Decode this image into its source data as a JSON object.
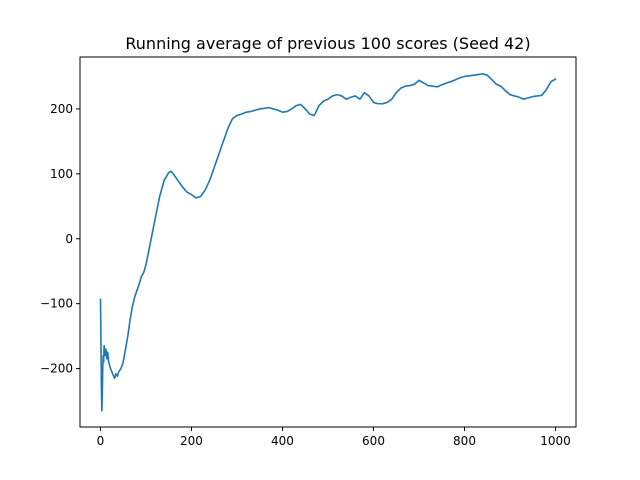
{
  "chart_data": {
    "type": "line",
    "title": "Running average of previous 100 scores (Seed 42)",
    "xlabel": "",
    "ylabel": "",
    "xlim": [
      -45,
      1045
    ],
    "ylim": [
      -290,
      280
    ],
    "x_ticks": [
      0,
      200,
      400,
      600,
      800,
      1000
    ],
    "x_tick_labels": [
      "0",
      "200",
      "400",
      "600",
      "800",
      "1000"
    ],
    "y_ticks": [
      -200,
      -100,
      0,
      100,
      200
    ],
    "y_tick_labels": [
      "−200",
      "−100",
      "0",
      "100",
      "200"
    ],
    "grid": false,
    "legend": "none",
    "series": [
      {
        "color": "#1f77b4",
        "x": [
          0,
          1,
          2,
          3,
          4,
          5,
          6,
          7,
          8,
          9,
          10,
          12,
          14,
          16,
          18,
          20,
          22,
          25,
          28,
          31,
          34,
          37,
          40,
          45,
          50,
          55,
          60,
          65,
          70,
          75,
          80,
          85,
          90,
          95,
          100,
          110,
          120,
          130,
          140,
          150,
          155,
          160,
          165,
          170,
          180,
          190,
          200,
          210,
          220,
          230,
          240,
          250,
          260,
          270,
          280,
          290,
          300,
          310,
          320,
          330,
          340,
          350,
          360,
          370,
          380,
          390,
          400,
          410,
          420,
          430,
          440,
          450,
          460,
          470,
          480,
          490,
          500,
          510,
          520,
          530,
          540,
          550,
          560,
          570,
          580,
          590,
          600,
          610,
          620,
          630,
          640,
          650,
          660,
          670,
          680,
          690,
          700,
          710,
          720,
          730,
          740,
          750,
          760,
          770,
          780,
          790,
          800,
          810,
          820,
          830,
          840,
          850,
          860,
          870,
          880,
          890,
          900,
          910,
          920,
          930,
          940,
          950,
          960,
          970,
          980,
          990,
          1000
        ],
        "values": [
          -93,
          -150,
          -230,
          -265,
          -240,
          -200,
          -180,
          -190,
          -165,
          -170,
          -180,
          -170,
          -185,
          -175,
          -190,
          -195,
          -200,
          -205,
          -210,
          -215,
          -208,
          -212,
          -205,
          -200,
          -190,
          -170,
          -150,
          -125,
          -105,
          -90,
          -80,
          -70,
          -58,
          -52,
          -40,
          -5,
          30,
          65,
          90,
          102,
          104,
          100,
          95,
          90,
          80,
          72,
          68,
          63,
          65,
          75,
          90,
          110,
          130,
          150,
          170,
          185,
          190,
          192,
          195,
          196,
          198,
          200,
          201,
          202,
          200,
          198,
          195,
          196,
          200,
          205,
          207,
          200,
          192,
          190,
          205,
          212,
          215,
          220,
          222,
          220,
          215,
          218,
          220,
          215,
          225,
          220,
          210,
          208,
          208,
          210,
          215,
          225,
          232,
          235,
          236,
          238,
          244,
          240,
          236,
          235,
          234,
          237,
          240,
          242,
          245,
          248,
          250,
          251,
          252,
          253,
          254,
          252,
          245,
          238,
          235,
          228,
          222,
          220,
          218,
          215,
          217,
          219,
          220,
          221,
          230,
          242,
          246
        ]
      }
    ]
  }
}
